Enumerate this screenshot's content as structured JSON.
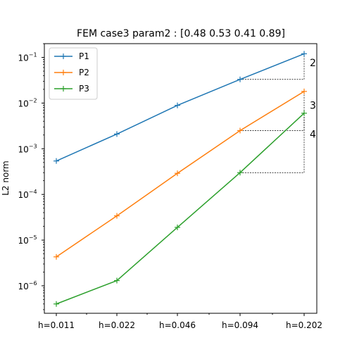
{
  "chart_data": {
    "type": "line",
    "title": "FEM case3 param2 : [0.48 0.53 0.41 0.89]",
    "xlabel": "",
    "ylabel": "L2 norm",
    "yscale": "log",
    "categories": [
      "h=0.011",
      "h=0.022",
      "h=0.046",
      "h=0.094",
      "h=0.202"
    ],
    "y_tick_exponents": [
      -6,
      -5,
      -4,
      -3,
      -2,
      -1
    ],
    "ylim": [
      2.5e-07,
      0.2
    ],
    "legend_position": "top-left",
    "grid": false,
    "series": [
      {
        "name": "P1",
        "color": "#1f77b4",
        "values": [
          0.00054,
          0.0021,
          0.0089,
          0.033,
          0.12
        ]
      },
      {
        "name": "P2",
        "color": "#ff7f0e",
        "values": [
          4.3e-06,
          3.4e-05,
          0.00029,
          0.0025,
          0.018
        ]
      },
      {
        "name": "P3",
        "color": "#2ca02c",
        "values": [
          4e-07,
          1.3e-06,
          1.9e-05,
          0.0003,
          0.006
        ]
      }
    ],
    "slope_triangles": [
      {
        "label": "2",
        "base_category": 3,
        "tip_category": 4,
        "y_low": 0.033,
        "y_high": 0.12
      },
      {
        "label": "3",
        "base_category": 3,
        "tip_category": 4,
        "y_low": 0.0025,
        "y_high": 0.018
      },
      {
        "label": "4",
        "base_category": 3,
        "tip_category": 4,
        "y_low": 0.0003,
        "y_high": 0.006
      }
    ]
  }
}
